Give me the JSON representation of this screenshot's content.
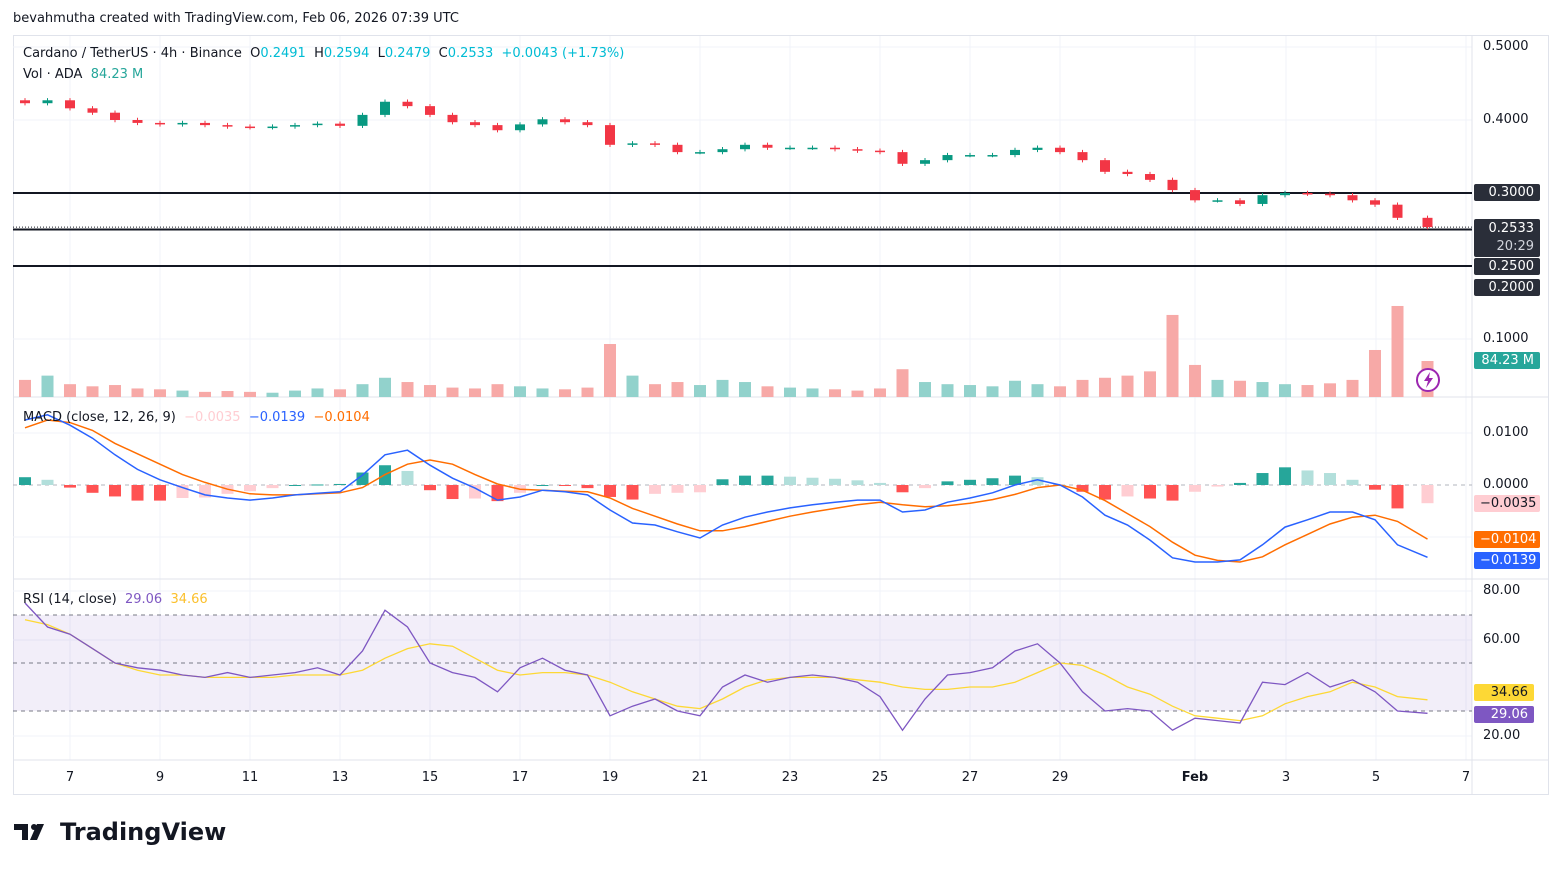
{
  "credit": "bevahmutha created with TradingView.com, Feb 06, 2026 07:39 UTC",
  "logo_text": "TradingView",
  "legend": {
    "symbol": "Cardano / TetherUS · 4h · Binance",
    "o_label": "O",
    "o": "0.2491",
    "h_label": "H",
    "h": "0.2594",
    "l_label": "L",
    "l": "0.2479",
    "c_label": "C",
    "c": "0.2533",
    "change": "+0.0043 (+1.73%)",
    "vol_label": "Vol · ADA",
    "vol": "84.23 M"
  },
  "macd_legend": {
    "title": "MACD (close, 12, 26, 9)",
    "hist": "−0.0035",
    "macd": "−0.0139",
    "signal": "−0.0104"
  },
  "rsi_legend": {
    "title": "RSI (14, close)",
    "rsi": "29.06",
    "ma": "34.66"
  },
  "price_axis": {
    "ticks": [
      "0.5000",
      "0.4000",
      "0.1000"
    ],
    "tags": {
      "line_030": "0.3000",
      "last": "0.2533",
      "countdown": "20:29",
      "line_025": "0.2500",
      "line_020": "0.2000",
      "volume": "84.23 M"
    }
  },
  "macd_axis": {
    "ticks": [
      "0.0100",
      "0.0000"
    ],
    "tags": {
      "hist": "−0.0035",
      "signal": "−0.0104",
      "macd": "−0.0139"
    }
  },
  "rsi_axis": {
    "ticks": [
      "80.00",
      "60.00",
      "20.00"
    ],
    "tags": {
      "ma": "34.66",
      "rsi": "29.06"
    }
  },
  "time_axis": [
    "7",
    "9",
    "11",
    "13",
    "15",
    "17",
    "19",
    "21",
    "23",
    "25",
    "27",
    "29",
    "Feb",
    "3",
    "5",
    "7"
  ],
  "colors": {
    "up": "#089981",
    "down": "#f23645",
    "macd": "#2962ff",
    "signal": "#ff6d00",
    "rsi": "#7e57c2",
    "rsi_ma": "#fdd835",
    "volume_tag": "#26a69a",
    "alert_icon": "#9c27b0"
  },
  "icons": [
    "tradingview-logo-icon",
    "lightning-alert-icon"
  ],
  "chart_data": [
    {
      "type": "candlestick",
      "title": "Cardano / TetherUS · 4h · Binance",
      "ylim": [
        0.0,
        0.52
      ],
      "horizontal_lines": [
        0.3,
        0.25,
        0.2
      ],
      "last_price": 0.2533,
      "x": [
        "2026-01-06T00:00",
        "2026-01-06T12:00",
        "2026-01-07T00:00",
        "2026-01-07T12:00",
        "2026-01-08T00:00",
        "2026-01-08T12:00",
        "2026-01-09T00:00",
        "2026-01-09T12:00",
        "2026-01-10T00:00",
        "2026-01-10T12:00",
        "2026-01-11T00:00",
        "2026-01-11T12:00",
        "2026-01-12T00:00",
        "2026-01-12T12:00",
        "2026-01-13T00:00",
        "2026-01-13T12:00",
        "2026-01-14T00:00",
        "2026-01-14T12:00",
        "2026-01-15T00:00",
        "2026-01-15T12:00",
        "2026-01-16T00:00",
        "2026-01-16T12:00",
        "2026-01-17T00:00",
        "2026-01-17T12:00",
        "2026-01-18T00:00",
        "2026-01-18T12:00",
        "2026-01-19T00:00",
        "2026-01-19T12:00",
        "2026-01-20T00:00",
        "2026-01-20T12:00",
        "2026-01-21T00:00",
        "2026-01-21T12:00",
        "2026-01-22T00:00",
        "2026-01-22T12:00",
        "2026-01-23T00:00",
        "2026-01-23T12:00",
        "2026-01-24T00:00",
        "2026-01-24T12:00",
        "2026-01-25T00:00",
        "2026-01-25T12:00",
        "2026-01-26T00:00",
        "2026-01-26T12:00",
        "2026-01-27T00:00",
        "2026-01-27T12:00",
        "2026-01-28T00:00",
        "2026-01-28T12:00",
        "2026-01-29T00:00",
        "2026-01-29T12:00",
        "2026-01-30T00:00",
        "2026-01-30T12:00",
        "2026-01-31T00:00",
        "2026-01-31T12:00",
        "2026-02-01T00:00",
        "2026-02-01T12:00",
        "2026-02-02T00:00",
        "2026-02-02T12:00",
        "2026-02-03T00:00",
        "2026-02-03T12:00",
        "2026-02-04T00:00",
        "2026-02-04T12:00",
        "2026-02-05T00:00",
        "2026-02-05T12:00",
        "2026-02-06T04:00"
      ],
      "close": [
        0.423,
        0.427,
        0.416,
        0.41,
        0.4,
        0.396,
        0.394,
        0.396,
        0.393,
        0.391,
        0.39,
        0.391,
        0.393,
        0.395,
        0.392,
        0.407,
        0.425,
        0.419,
        0.407,
        0.397,
        0.393,
        0.386,
        0.394,
        0.401,
        0.397,
        0.393,
        0.366,
        0.368,
        0.366,
        0.356,
        0.356,
        0.36,
        0.366,
        0.362,
        0.362,
        0.362,
        0.36,
        0.358,
        0.356,
        0.34,
        0.345,
        0.352,
        0.352,
        0.352,
        0.359,
        0.362,
        0.356,
        0.345,
        0.329,
        0.326,
        0.318,
        0.304,
        0.29,
        0.29,
        0.285,
        0.297,
        0.3,
        0.299,
        0.297,
        0.29,
        0.284,
        0.266,
        0.2533
      ],
      "volume_millions": [
        40,
        50,
        30,
        25,
        28,
        20,
        18,
        15,
        12,
        14,
        12,
        10,
        15,
        20,
        18,
        30,
        45,
        35,
        28,
        22,
        20,
        30,
        25,
        20,
        18,
        22,
        124,
        50,
        30,
        35,
        28,
        40,
        35,
        25,
        22,
        20,
        18,
        15,
        20,
        65,
        35,
        30,
        28,
        25,
        38,
        30,
        25,
        40,
        45,
        50,
        60,
        192,
        75,
        40,
        38,
        35,
        30,
        28,
        32,
        40,
        110,
        213,
        84.23
      ]
    },
    {
      "type": "line",
      "title": "MACD (close, 12, 26, 9)",
      "ylim": [
        -0.018,
        0.016
      ],
      "series": [
        {
          "name": "MACD",
          "values": [
            0.0125,
            0.0135,
            0.0115,
            0.009,
            0.0058,
            0.003,
            0.001,
            -0.0005,
            -0.0019,
            -0.0025,
            -0.0029,
            -0.0025,
            -0.0019,
            -0.0016,
            -0.0013,
            0.0019,
            0.0058,
            0.0067,
            0.0038,
            0.0013,
            -0.0006,
            -0.0029,
            -0.0023,
            -0.001,
            -0.0013,
            -0.0019,
            -0.0048,
            -0.0073,
            -0.0077,
            -0.009,
            -0.0102,
            -0.0077,
            -0.0062,
            -0.0052,
            -0.0044,
            -0.0038,
            -0.0033,
            -0.0029,
            -0.0029,
            -0.0052,
            -0.0048,
            -0.0033,
            -0.0025,
            -0.0015,
            0.0,
            0.001,
            0.0,
            -0.0023,
            -0.0058,
            -0.0077,
            -0.0106,
            -0.014,
            -0.0148,
            -0.0148,
            -0.0144,
            -0.0115,
            -0.0081,
            -0.0067,
            -0.0052,
            -0.0052,
            -0.0067,
            -0.0115,
            -0.0139
          ]
        },
        {
          "name": "Signal",
          "values": [
            0.011,
            0.0125,
            0.012,
            0.0105,
            0.008,
            0.006,
            0.004,
            0.002,
            0.0005,
            -0.0008,
            -0.0017,
            -0.0019,
            -0.0019,
            -0.0017,
            -0.0015,
            -0.0005,
            0.002,
            0.004,
            0.0048,
            0.004,
            0.002,
            0.0002,
            -0.0008,
            -0.001,
            -0.0012,
            -0.0013,
            -0.0025,
            -0.0045,
            -0.006,
            -0.0075,
            -0.0088,
            -0.0088,
            -0.008,
            -0.007,
            -0.006,
            -0.0052,
            -0.0045,
            -0.0038,
            -0.0033,
            -0.0038,
            -0.0042,
            -0.004,
            -0.0035,
            -0.0028,
            -0.0018,
            -0.0005,
            0.0,
            -0.001,
            -0.003,
            -0.0055,
            -0.008,
            -0.011,
            -0.0135,
            -0.0145,
            -0.0148,
            -0.0138,
            -0.0115,
            -0.0095,
            -0.0075,
            -0.0062,
            -0.0058,
            -0.007,
            -0.0104
          ]
        }
      ]
    },
    {
      "type": "line",
      "title": "RSI (14, close)",
      "ylim": [
        12,
        88
      ],
      "bands": [
        30,
        50,
        70
      ],
      "series": [
        {
          "name": "RSI",
          "values": [
            75,
            65,
            62,
            56,
            50,
            48,
            47,
            45,
            44,
            46,
            44,
            45,
            46,
            48,
            45,
            55,
            72,
            65,
            50,
            46,
            44,
            38,
            48,
            52,
            47,
            45,
            28,
            32,
            35,
            30,
            28,
            40,
            45,
            42,
            44,
            45,
            44,
            42,
            36,
            22,
            35,
            45,
            46,
            48,
            55,
            58,
            50,
            38,
            30,
            31,
            30,
            22,
            27,
            26,
            25,
            42,
            41,
            46,
            40,
            43,
            38,
            30,
            29.06
          ]
        },
        {
          "name": "RSI MA",
          "values": [
            68,
            66,
            62,
            56,
            50,
            47,
            45,
            45,
            44,
            44,
            44,
            44,
            45,
            45,
            45,
            47,
            52,
            56,
            58,
            57,
            52,
            47,
            45,
            46,
            46,
            45,
            42,
            38,
            35,
            32,
            31,
            35,
            40,
            43,
            44,
            44,
            44,
            43,
            42,
            40,
            39,
            39,
            40,
            40,
            42,
            46,
            50,
            49,
            45,
            40,
            37,
            32,
            28,
            27,
            26,
            28,
            33,
            36,
            38,
            42,
            40,
            36,
            34.66
          ]
        }
      ]
    }
  ]
}
